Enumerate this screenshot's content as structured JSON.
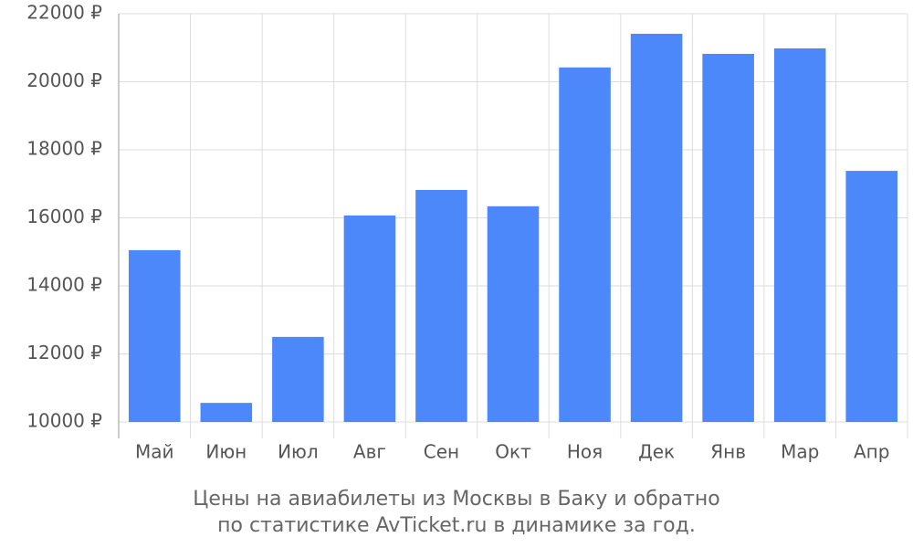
{
  "chart_data": {
    "type": "bar",
    "title": [
      "Цены на авиабилеты из Москвы в Баку и обратно",
      "по статистике AvTicket.ru в динамике за год."
    ],
    "categories": [
      "Май",
      "Июн",
      "Июл",
      "Авг",
      "Сен",
      "Окт",
      "Ноя",
      "Дек",
      "Янв",
      "Мар",
      "Апр"
    ],
    "values": [
      15050,
      10560,
      12500,
      16070,
      16820,
      16340,
      20420,
      21410,
      20820,
      20980,
      17380
    ],
    "color": "#4d88fa",
    "ylim": [
      10000,
      22000
    ],
    "yticks": [
      {
        "value": 10000,
        "label": "10000 ₽"
      },
      {
        "value": 12000,
        "label": "12000 ₽"
      },
      {
        "value": 14000,
        "label": "14000 ₽"
      },
      {
        "value": 16000,
        "label": "16000 ₽"
      },
      {
        "value": 18000,
        "label": "18000 ₽"
      },
      {
        "value": 20000,
        "label": "20000 ₽"
      },
      {
        "value": 22000,
        "label": "22000 ₽"
      }
    ],
    "grid": true
  }
}
